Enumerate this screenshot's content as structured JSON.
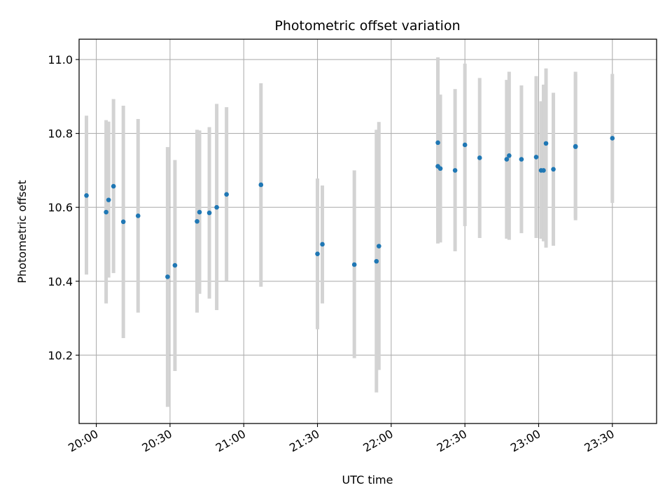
{
  "chart_data": {
    "type": "scatter",
    "title": "Photometric offset variation",
    "xlabel": "UTC time",
    "ylabel": "Photometric offset",
    "grid": true,
    "x_axis": {
      "kind": "time",
      "range": [
        "19:53",
        "23:48"
      ],
      "ticks": [
        "20:00",
        "20:30",
        "21:00",
        "21:30",
        "22:00",
        "22:30",
        "23:00",
        "23:30"
      ]
    },
    "y_axis": {
      "range": [
        10.015,
        11.055
      ],
      "ticks": [
        10.2,
        10.4,
        10.6,
        10.8,
        11.0
      ],
      "tick_labels": [
        "10.2",
        "10.4",
        "10.6",
        "10.8",
        "11.0"
      ]
    },
    "colors": {
      "points": "#1f77b4",
      "error_bars": "#d3d3d3",
      "grid": "#b0b0b0"
    },
    "points": [
      {
        "x": "19:56",
        "y": 10.632,
        "low": 10.418,
        "high": 10.848
      },
      {
        "x": "20:04",
        "y": 10.587,
        "low": 10.34,
        "high": 10.836
      },
      {
        "x": "20:05",
        "y": 10.62,
        "low": 10.41,
        "high": 10.832
      },
      {
        "x": "20:07",
        "y": 10.657,
        "low": 10.422,
        "high": 10.893
      },
      {
        "x": "20:11",
        "y": 10.561,
        "low": 10.246,
        "high": 10.875
      },
      {
        "x": "20:17",
        "y": 10.577,
        "low": 10.315,
        "high": 10.839
      },
      {
        "x": "20:29",
        "y": 10.412,
        "low": 10.06,
        "high": 10.763
      },
      {
        "x": "20:32",
        "y": 10.443,
        "low": 10.157,
        "high": 10.728
      },
      {
        "x": "20:41",
        "y": 10.562,
        "low": 10.315,
        "high": 10.81
      },
      {
        "x": "20:42",
        "y": 10.587,
        "low": 10.366,
        "high": 10.808
      },
      {
        "x": "20:46",
        "y": 10.585,
        "low": 10.353,
        "high": 10.817
      },
      {
        "x": "20:49",
        "y": 10.6,
        "low": 10.322,
        "high": 10.88
      },
      {
        "x": "20:53",
        "y": 10.635,
        "low": 10.401,
        "high": 10.871
      },
      {
        "x": "21:07",
        "y": 10.661,
        "low": 10.385,
        "high": 10.936
      },
      {
        "x": "21:30",
        "y": 10.474,
        "low": 10.27,
        "high": 10.678
      },
      {
        "x": "21:32",
        "y": 10.5,
        "low": 10.34,
        "high": 10.659
      },
      {
        "x": "21:45",
        "y": 10.445,
        "low": 10.192,
        "high": 10.7
      },
      {
        "x": "21:54",
        "y": 10.454,
        "low": 10.099,
        "high": 10.81
      },
      {
        "x": "21:55",
        "y": 10.495,
        "low": 10.16,
        "high": 10.831
      },
      {
        "x": "22:19",
        "y": 10.775,
        "low": 10.545,
        "high": 11.006
      },
      {
        "x": "22:19",
        "y": 10.711,
        "low": 10.502,
        "high": 10.993
      },
      {
        "x": "22:20",
        "y": 10.705,
        "low": 10.505,
        "high": 10.905
      },
      {
        "x": "22:26",
        "y": 10.7,
        "low": 10.481,
        "high": 10.92
      },
      {
        "x": "22:30",
        "y": 10.769,
        "low": 10.549,
        "high": 10.989
      },
      {
        "x": "22:36",
        "y": 10.734,
        "low": 10.517,
        "high": 10.95
      },
      {
        "x": "22:47",
        "y": 10.73,
        "low": 10.515,
        "high": 10.945
      },
      {
        "x": "22:48",
        "y": 10.74,
        "low": 10.512,
        "high": 10.967
      },
      {
        "x": "22:53",
        "y": 10.73,
        "low": 10.53,
        "high": 10.93
      },
      {
        "x": "22:59",
        "y": 10.736,
        "low": 10.517,
        "high": 10.955
      },
      {
        "x": "23:01",
        "y": 10.7,
        "low": 10.515,
        "high": 10.887
      },
      {
        "x": "23:02",
        "y": 10.7,
        "low": 10.508,
        "high": 10.932
      },
      {
        "x": "23:03",
        "y": 10.773,
        "low": 10.491,
        "high": 10.976
      },
      {
        "x": "23:06",
        "y": 10.703,
        "low": 10.496,
        "high": 10.91
      },
      {
        "x": "23:15",
        "y": 10.764,
        "low": 10.571,
        "high": 10.96
      },
      {
        "x": "23:15",
        "y": 10.765,
        "low": 10.565,
        "high": 10.967
      },
      {
        "x": "23:30",
        "y": 10.787,
        "low": 10.612,
        "high": 10.961
      }
    ]
  }
}
